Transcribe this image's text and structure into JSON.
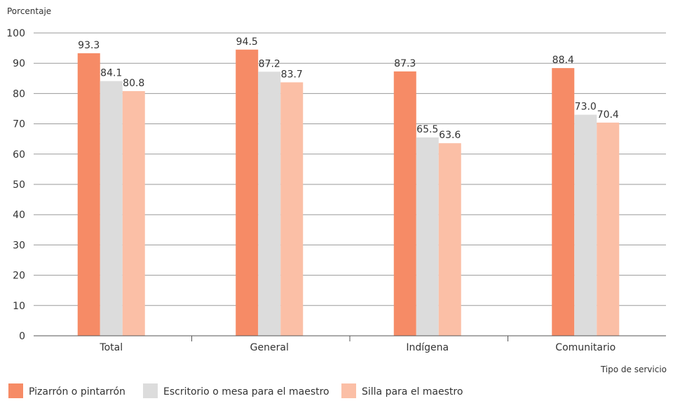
{
  "chart_data": {
    "type": "bar",
    "title": "",
    "ylabel": "Porcentaje",
    "xlabel": "Tipo de servicio",
    "categories": [
      "Total",
      "General",
      "Indígena",
      "Comunitario"
    ],
    "series": [
      {
        "name": "Pizarrón o pintarrón",
        "color": "#f68b66",
        "values": [
          93.3,
          94.5,
          87.3,
          88.4
        ]
      },
      {
        "name": "Escritorio o mesa para el maestro",
        "color": "#dcdcdc",
        "values": [
          84.1,
          87.2,
          65.5,
          73.0
        ]
      },
      {
        "name": "Silla para el maestro",
        "color": "#fbbfa6",
        "values": [
          80.8,
          83.7,
          63.6,
          70.4
        ]
      }
    ],
    "ylim": [
      0,
      100
    ],
    "yticks": [
      0,
      10,
      20,
      30,
      40,
      50,
      60,
      70,
      80,
      90,
      100
    ],
    "grid": true,
    "legend_position": "bottom-left"
  }
}
